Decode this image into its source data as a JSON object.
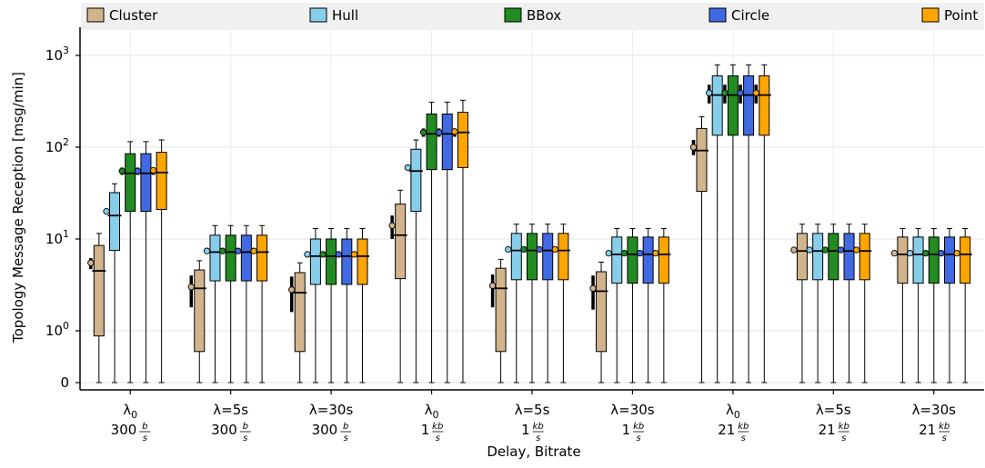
{
  "chart_data": {
    "type": "box",
    "title": "",
    "xlabel": "Delay, Bitrate",
    "ylabel": "Topology Message Reception [msg/min]",
    "y_scale": "symlog",
    "y_ticks": [
      {
        "value": 0,
        "base": "0",
        "exp": ""
      },
      {
        "value": 1,
        "base": "10",
        "exp": "0"
      },
      {
        "value": 10,
        "base": "10",
        "exp": "1"
      },
      {
        "value": 100,
        "base": "10",
        "exp": "2"
      },
      {
        "value": 1000,
        "base": "10",
        "exp": "3"
      }
    ],
    "ylim": [
      0,
      1000
    ],
    "grid": true,
    "legend_position": "top",
    "series": [
      {
        "name": "Cluster",
        "color": "#d2b48c"
      },
      {
        "name": "Hull",
        "color": "#87ceeb"
      },
      {
        "name": "BBox",
        "color": "#228b22"
      },
      {
        "name": "Circle",
        "color": "#4169e1"
      },
      {
        "name": "Point",
        "color": "#ffa500"
      }
    ],
    "groups": [
      {
        "delay": "λ0",
        "bitrate_num": "300",
        "bitrate_unit_num": "b",
        "bitrate_unit_den": "s",
        "boxes": [
          {
            "min": 0,
            "q1": 0.9,
            "median": 4.5,
            "q3": 8.5,
            "max": 11.5,
            "mean": 5.5,
            "ci": [
              4.7,
              6.2
            ]
          },
          {
            "min": 0,
            "q1": 7.5,
            "median": 18,
            "q3": 32,
            "max": 40,
            "mean": 20,
            "ci": [
              19,
              21
            ]
          },
          {
            "min": 0,
            "q1": 20,
            "median": 52,
            "q3": 85,
            "max": 115,
            "mean": 55,
            "ci": [
              50,
              60
            ]
          },
          {
            "min": 0,
            "q1": 20,
            "median": 52,
            "q3": 85,
            "max": 115,
            "mean": 55,
            "ci": [
              50,
              60
            ]
          },
          {
            "min": 0,
            "q1": 21,
            "median": 53,
            "q3": 88,
            "max": 120,
            "mean": 56,
            "ci": [
              50,
              60
            ]
          }
        ]
      },
      {
        "delay": "λ=5s",
        "bitrate_num": "300",
        "bitrate_unit_num": "b",
        "bitrate_unit_den": "s",
        "boxes": [
          {
            "min": 0,
            "q1": 0.6,
            "median": 2.9,
            "q3": 4.6,
            "max": 5.8,
            "mean": 3.0,
            "ci": [
              1.8,
              4.0
            ]
          },
          {
            "min": 0,
            "q1": 3.5,
            "median": 7.2,
            "q3": 11,
            "max": 14,
            "mean": 7.4,
            "ci": [
              7.0,
              7.8
            ]
          },
          {
            "min": 0,
            "q1": 3.5,
            "median": 7.2,
            "q3": 11,
            "max": 14,
            "mean": 7.4,
            "ci": [
              7.0,
              7.8
            ]
          },
          {
            "min": 0,
            "q1": 3.5,
            "median": 7.2,
            "q3": 11,
            "max": 14,
            "mean": 7.4,
            "ci": [
              7.0,
              7.8
            ]
          },
          {
            "min": 0,
            "q1": 3.5,
            "median": 7.2,
            "q3": 11,
            "max": 14,
            "mean": 7.4,
            "ci": [
              7.0,
              7.8
            ]
          }
        ]
      },
      {
        "delay": "λ=30s",
        "bitrate_num": "300",
        "bitrate_unit_num": "b",
        "bitrate_unit_den": "s",
        "boxes": [
          {
            "min": 0,
            "q1": 0.6,
            "median": 2.6,
            "q3": 4.3,
            "max": 5.5,
            "mean": 2.8,
            "ci": [
              1.6,
              3.9
            ]
          },
          {
            "min": 0,
            "q1": 3.2,
            "median": 6.5,
            "q3": 10,
            "max": 13,
            "mean": 6.8,
            "ci": [
              6.4,
              7.2
            ]
          },
          {
            "min": 0,
            "q1": 3.2,
            "median": 6.5,
            "q3": 10,
            "max": 13,
            "mean": 6.8,
            "ci": [
              6.4,
              7.2
            ]
          },
          {
            "min": 0,
            "q1": 3.2,
            "median": 6.5,
            "q3": 10,
            "max": 13,
            "mean": 6.8,
            "ci": [
              6.4,
              7.2
            ]
          },
          {
            "min": 0,
            "q1": 3.2,
            "median": 6.5,
            "q3": 10,
            "max": 13,
            "mean": 6.8,
            "ci": [
              6.4,
              7.2
            ]
          }
        ]
      },
      {
        "delay": "λ0",
        "bitrate_num": "1",
        "bitrate_unit_num": "kb",
        "bitrate_unit_den": "s",
        "boxes": [
          {
            "min": 0,
            "q1": 3.7,
            "median": 11,
            "q3": 24,
            "max": 34,
            "mean": 14,
            "ci": [
              10,
              18
            ]
          },
          {
            "min": 0,
            "q1": 20,
            "median": 55,
            "q3": 95,
            "max": 120,
            "mean": 60,
            "ci": [
              57,
              63
            ]
          },
          {
            "min": 0,
            "q1": 57,
            "median": 140,
            "q3": 230,
            "max": 310,
            "mean": 145,
            "ci": [
              130,
              160
            ]
          },
          {
            "min": 0,
            "q1": 57,
            "median": 140,
            "q3": 230,
            "max": 310,
            "mean": 145,
            "ci": [
              130,
              160
            ]
          },
          {
            "min": 0,
            "q1": 60,
            "median": 145,
            "q3": 240,
            "max": 325,
            "mean": 148,
            "ci": [
              130,
              160
            ]
          }
        ]
      },
      {
        "delay": "λ=5s",
        "bitrate_num": "1",
        "bitrate_unit_num": "kb",
        "bitrate_unit_den": "s",
        "boxes": [
          {
            "min": 0,
            "q1": 0.6,
            "median": 2.9,
            "q3": 4.8,
            "max": 6,
            "mean": 3.1,
            "ci": [
              1.8,
              4.1
            ]
          },
          {
            "min": 0,
            "q1": 3.6,
            "median": 7.5,
            "q3": 11.5,
            "max": 14.5,
            "mean": 7.7,
            "ci": [
              7.3,
              8.1
            ]
          },
          {
            "min": 0,
            "q1": 3.6,
            "median": 7.5,
            "q3": 11.5,
            "max": 14.5,
            "mean": 7.7,
            "ci": [
              7.3,
              8.1
            ]
          },
          {
            "min": 0,
            "q1": 3.6,
            "median": 7.5,
            "q3": 11.5,
            "max": 14.5,
            "mean": 7.7,
            "ci": [
              7.3,
              8.1
            ]
          },
          {
            "min": 0,
            "q1": 3.6,
            "median": 7.5,
            "q3": 11.5,
            "max": 14.5,
            "mean": 7.7,
            "ci": [
              7.3,
              8.1
            ]
          }
        ]
      },
      {
        "delay": "λ=30s",
        "bitrate_num": "1",
        "bitrate_unit_num": "kb",
        "bitrate_unit_den": "s",
        "boxes": [
          {
            "min": 0,
            "q1": 0.6,
            "median": 2.7,
            "q3": 4.4,
            "max": 5.6,
            "mean": 2.9,
            "ci": [
              1.7,
              4.0
            ]
          },
          {
            "min": 0,
            "q1": 3.3,
            "median": 6.8,
            "q3": 10.5,
            "max": 13,
            "mean": 7.0,
            "ci": [
              6.6,
              7.4
            ]
          },
          {
            "min": 0,
            "q1": 3.3,
            "median": 6.8,
            "q3": 10.5,
            "max": 13,
            "mean": 7.0,
            "ci": [
              6.6,
              7.4
            ]
          },
          {
            "min": 0,
            "q1": 3.3,
            "median": 6.8,
            "q3": 10.5,
            "max": 13,
            "mean": 7.0,
            "ci": [
              6.6,
              7.4
            ]
          },
          {
            "min": 0,
            "q1": 3.3,
            "median": 6.8,
            "q3": 10.5,
            "max": 13,
            "mean": 7.0,
            "ci": [
              6.6,
              7.4
            ]
          }
        ]
      },
      {
        "delay": "λ0",
        "bitrate_num": "21",
        "bitrate_unit_num": "kb",
        "bitrate_unit_den": "s",
        "boxes": [
          {
            "min": 0,
            "q1": 33,
            "median": 92,
            "q3": 160,
            "max": 215,
            "mean": 100,
            "ci": [
              82,
              120
            ]
          },
          {
            "min": 0,
            "q1": 135,
            "median": 370,
            "q3": 600,
            "max": 790,
            "mean": 390,
            "ci": [
              300,
              480
            ]
          },
          {
            "min": 0,
            "q1": 135,
            "median": 370,
            "q3": 600,
            "max": 790,
            "mean": 390,
            "ci": [
              300,
              480
            ]
          },
          {
            "min": 0,
            "q1": 135,
            "median": 370,
            "q3": 600,
            "max": 790,
            "mean": 390,
            "ci": [
              300,
              480
            ]
          },
          {
            "min": 0,
            "q1": 135,
            "median": 370,
            "q3": 600,
            "max": 790,
            "mean": 390,
            "ci": [
              300,
              480
            ]
          }
        ]
      },
      {
        "delay": "λ=5s",
        "bitrate_num": "21",
        "bitrate_unit_num": "kb",
        "bitrate_unit_den": "s",
        "boxes": [
          {
            "min": 0,
            "q1": 3.6,
            "median": 7.4,
            "q3": 11.5,
            "max": 14.5,
            "mean": 7.6,
            "ci": [
              7.2,
              8.0
            ]
          },
          {
            "min": 0,
            "q1": 3.6,
            "median": 7.4,
            "q3": 11.5,
            "max": 14.5,
            "mean": 7.6,
            "ci": [
              7.2,
              8.0
            ]
          },
          {
            "min": 0,
            "q1": 3.6,
            "median": 7.4,
            "q3": 11.5,
            "max": 14.5,
            "mean": 7.6,
            "ci": [
              7.2,
              8.0
            ]
          },
          {
            "min": 0,
            "q1": 3.6,
            "median": 7.4,
            "q3": 11.5,
            "max": 14.5,
            "mean": 7.6,
            "ci": [
              7.2,
              8.0
            ]
          },
          {
            "min": 0,
            "q1": 3.6,
            "median": 7.4,
            "q3": 11.5,
            "max": 14.5,
            "mean": 7.6,
            "ci": [
              7.2,
              8.0
            ]
          }
        ]
      },
      {
        "delay": "λ=30s",
        "bitrate_num": "21",
        "bitrate_unit_num": "kb",
        "bitrate_unit_den": "s",
        "boxes": [
          {
            "min": 0,
            "q1": 3.3,
            "median": 6.8,
            "q3": 10.5,
            "max": 13,
            "mean": 7.0,
            "ci": [
              6.6,
              7.4
            ]
          },
          {
            "min": 0,
            "q1": 3.3,
            "median": 6.8,
            "q3": 10.5,
            "max": 13,
            "mean": 7.0,
            "ci": [
              6.6,
              7.4
            ]
          },
          {
            "min": 0,
            "q1": 3.3,
            "median": 6.8,
            "q3": 10.5,
            "max": 13,
            "mean": 7.0,
            "ci": [
              6.6,
              7.4
            ]
          },
          {
            "min": 0,
            "q1": 3.3,
            "median": 6.8,
            "q3": 10.5,
            "max": 13,
            "mean": 7.0,
            "ci": [
              6.6,
              7.4
            ]
          },
          {
            "min": 0,
            "q1": 3.3,
            "median": 6.8,
            "q3": 10.5,
            "max": 13,
            "mean": 7.0,
            "ci": [
              6.6,
              7.4
            ]
          }
        ]
      }
    ]
  }
}
